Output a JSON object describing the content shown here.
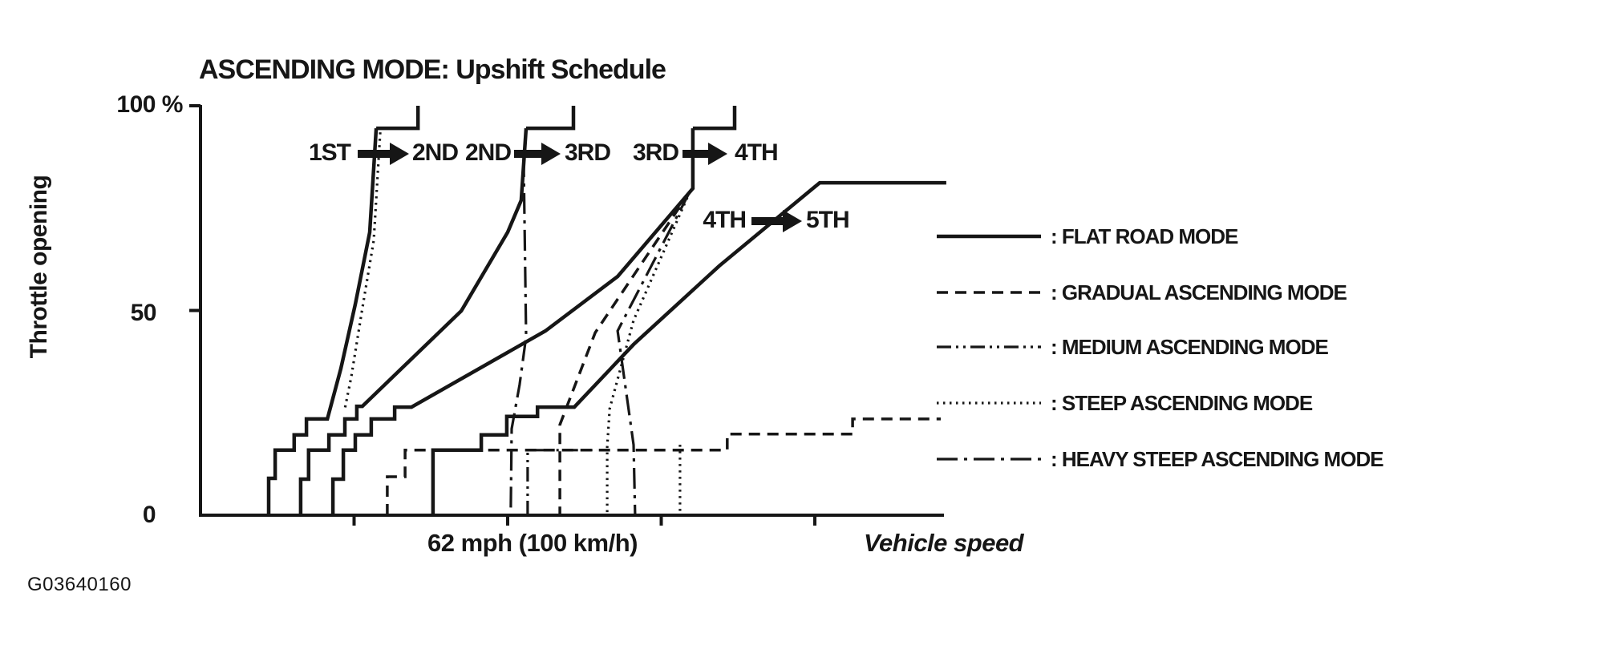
{
  "figure_id": "G03640160",
  "colors": {
    "ink": "#161616",
    "background": "#ffffff"
  },
  "chart_data": {
    "type": "line",
    "title": "ASCENDING MODE: Upshift Schedule",
    "xlabel": "Vehicle speed",
    "ylabel": "Throttle opening",
    "x_tick_label": "62 mph (100 km/h)",
    "x_unit": "km/h",
    "y_unit": "percent throttle opening",
    "xlim": [
      0,
      245
    ],
    "ylim": [
      0,
      100
    ],
    "grid": false,
    "legend_position": "right",
    "x_axis_ticks_kmh": [
      50,
      100,
      150,
      200
    ],
    "y_ticks": [
      {
        "value": 100,
        "label": "100 %"
      },
      {
        "value": 50,
        "label": "50"
      },
      {
        "value": 0,
        "label": "0"
      }
    ],
    "series": [
      {
        "id": "flat-1-2",
        "mode": "FLAT ROAD MODE",
        "shift": "1ST to 2ND",
        "style": "solid",
        "points": [
          [
            57.2,
            94.5
          ],
          [
            55.1,
            69.1
          ],
          [
            50.4,
            51.5
          ],
          [
            45.7,
            35.8
          ],
          [
            41.3,
            23.5
          ],
          [
            34.5,
            23.5
          ],
          [
            34.5,
            19.6
          ],
          [
            30.5,
            19.6
          ],
          [
            30.5,
            15.9
          ],
          [
            24.3,
            15.9
          ],
          [
            24.3,
            9.0
          ],
          [
            22.2,
            9.0
          ],
          [
            22.2,
            0
          ]
        ]
      },
      {
        "id": "flat-1-2-apex",
        "mode": "FLAT ROAD MODE",
        "shift": "1ST to 2ND",
        "style": "solid",
        "points": [
          [
            57.2,
            94.5
          ],
          [
            70.8,
            94.5
          ],
          [
            70.8,
            100.0
          ]
        ]
      },
      {
        "id": "flat-2-3",
        "mode": "FLAT ROAD MODE",
        "shift": "2ND to 3RD",
        "style": "solid",
        "points": [
          [
            106.0,
            94.5
          ],
          [
            104.4,
            76.9
          ],
          [
            100.0,
            69.1
          ],
          [
            84.9,
            49.9
          ],
          [
            52.7,
            26.6
          ],
          [
            50.9,
            26.6
          ],
          [
            50.9,
            23.5
          ],
          [
            47.0,
            23.5
          ],
          [
            47.0,
            19.6
          ],
          [
            41.8,
            19.6
          ],
          [
            41.8,
            15.9
          ],
          [
            35.2,
            15.9
          ],
          [
            35.2,
            8.8
          ],
          [
            32.6,
            8.8
          ],
          [
            32.6,
            0
          ]
        ]
      },
      {
        "id": "flat-2-3-apex",
        "mode": "FLAT ROAD MODE",
        "shift": "2ND to 3RD",
        "style": "solid",
        "points": [
          [
            106.0,
            94.5
          ],
          [
            121.4,
            94.5
          ],
          [
            121.4,
            100.0
          ]
        ]
      },
      {
        "id": "flat-3-4",
        "mode": "FLAT ROAD MODE",
        "shift": "3RD to 4TH",
        "style": "solid",
        "points": [
          [
            160.3,
            94.5
          ],
          [
            160.3,
            79.8
          ],
          [
            135.8,
            58.3
          ],
          [
            112.3,
            45.0
          ],
          [
            68.7,
            26.4
          ],
          [
            63.2,
            26.4
          ],
          [
            63.2,
            23.5
          ],
          [
            55.6,
            23.5
          ],
          [
            55.6,
            19.6
          ],
          [
            50.4,
            19.6
          ],
          [
            50.4,
            15.9
          ],
          [
            46.5,
            15.9
          ],
          [
            46.5,
            8.8
          ],
          [
            43.1,
            8.8
          ],
          [
            43.1,
            0
          ]
        ]
      },
      {
        "id": "flat-3-4-apex",
        "mode": "FLAT ROAD MODE",
        "shift": "3RD to 4TH",
        "style": "solid",
        "points": [
          [
            160.3,
            94.5
          ],
          [
            173.9,
            94.5
          ],
          [
            173.9,
            100.0
          ]
        ]
      },
      {
        "id": "flat-4-5",
        "mode": "FLAT ROAD MODE",
        "shift": "4TH to 5TH",
        "style": "solid",
        "points": [
          [
            75.7,
            0
          ],
          [
            75.7,
            15.9
          ],
          [
            91.4,
            15.9
          ],
          [
            91.4,
            19.6
          ],
          [
            99.7,
            19.6
          ],
          [
            99.7,
            24.1
          ],
          [
            109.7,
            24.1
          ],
          [
            109.7,
            26.4
          ],
          [
            121.7,
            26.4
          ],
          [
            141.0,
            41.7
          ],
          [
            168.9,
            60.9
          ],
          [
            201.6,
            81.2
          ],
          [
            242.8,
            81.2
          ]
        ]
      },
      {
        "id": "gradual-3-4",
        "mode": "GRADUAL ASCENDING MODE",
        "shift": "3RD to 4TH",
        "style": "dashed",
        "points": [
          [
            159.3,
            79.0
          ],
          [
            128.5,
            44.6
          ],
          [
            117.0,
            22.1
          ],
          [
            117.0,
            0
          ]
        ]
      },
      {
        "id": "gradual-4-5",
        "mode": "GRADUAL ASCENDING MODE",
        "shift": "4TH to 5TH",
        "style": "dashed",
        "points": [
          [
            60.8,
            0
          ],
          [
            60.8,
            9.4
          ],
          [
            66.6,
            9.4
          ],
          [
            66.6,
            15.9
          ],
          [
            171.5,
            15.9
          ],
          [
            171.5,
            19.8
          ],
          [
            212.3,
            19.8
          ],
          [
            212.3,
            23.5
          ],
          [
            241.0,
            23.5
          ]
        ]
      },
      {
        "id": "medium-4-5",
        "mode": "MEDIUM ASCENDING MODE",
        "shift": "4TH to 5TH",
        "style": "dash-dot-dot",
        "points": [
          [
            106.5,
            0
          ],
          [
            106.5,
            15.9
          ],
          [
            129.2,
            15.9
          ]
        ]
      },
      {
        "id": "steep-1-2",
        "mode": "STEEP ASCENDING MODE",
        "shift": "1ST to 2ND",
        "style": "dotted",
        "points": [
          [
            58.5,
            93.5
          ],
          [
            56.4,
            67.1
          ],
          [
            52.7,
            50.5
          ],
          [
            49.1,
            33.9
          ],
          [
            47.0,
            26.0
          ]
        ]
      },
      {
        "id": "steep-3-4",
        "mode": "STEEP ASCENDING MODE",
        "shift": "3RD to 4TH",
        "style": "dotted",
        "points": [
          [
            159.3,
            79.0
          ],
          [
            141.0,
            47.6
          ],
          [
            133.2,
            26.0
          ],
          [
            132.4,
            16.6
          ],
          [
            132.4,
            0
          ]
        ]
      },
      {
        "id": "steep-4-5",
        "mode": "STEEP ASCENDING MODE",
        "shift": "4TH to 5TH",
        "style": "dotted",
        "points": [
          [
            156.1,
            17.2
          ],
          [
            156.1,
            0
          ]
        ]
      },
      {
        "id": "heavy-steep-2-3",
        "mode": "HEAVY STEEP ASCENDING MODE",
        "shift": "2ND to 3RD",
        "style": "dash-dot",
        "points": [
          [
            105.2,
            87.7
          ],
          [
            106.0,
            43.6
          ],
          [
            103.9,
            31.9
          ],
          [
            101.3,
            21.1
          ],
          [
            101.0,
            0
          ]
        ]
      },
      {
        "id": "heavy-steep-3-4",
        "mode": "HEAVY STEEP ASCENDING MODE",
        "shift": "3RD to 4TH",
        "style": "dash-dot",
        "points": [
          [
            159.3,
            79.0
          ],
          [
            135.8,
            45.0
          ],
          [
            141.0,
            17.2
          ],
          [
            141.5,
            0
          ]
        ]
      }
    ]
  },
  "shift_labels": [
    {
      "from": "1ST",
      "to": "2ND"
    },
    {
      "from": "2ND",
      "to": "3RD"
    },
    {
      "from": "3RD",
      "to": "4TH"
    },
    {
      "from": "4TH",
      "to": "5TH"
    }
  ],
  "legend": {
    "rows": [
      {
        "label": ": FLAT ROAD MODE",
        "style": "solid"
      },
      {
        "label": ": GRADUAL ASCENDING MODE",
        "style": "dashed"
      },
      {
        "label": ": MEDIUM ASCENDING MODE",
        "style": "dash-dot-dot"
      },
      {
        "label": ": STEEP ASCENDING MODE",
        "style": "dotted"
      },
      {
        "label": ": HEAVY STEEP ASCENDING MODE",
        "style": "dash-dot"
      }
    ]
  }
}
